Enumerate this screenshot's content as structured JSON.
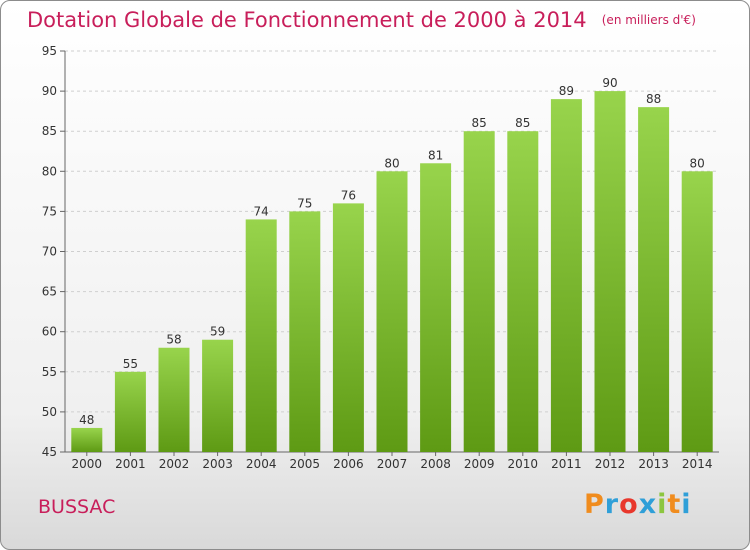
{
  "chart_data": {
    "type": "bar",
    "title": "Dotation Globale de Fonctionnement de 2000 à 2014",
    "unit_note": "(en milliers d'€)",
    "categories": [
      "2000",
      "2001",
      "2002",
      "2003",
      "2004",
      "2005",
      "2006",
      "2007",
      "2008",
      "2009",
      "2010",
      "2011",
      "2012",
      "2013",
      "2014"
    ],
    "values": [
      48,
      55,
      58,
      59,
      74,
      75,
      76,
      80,
      81,
      85,
      85,
      89,
      90,
      88,
      80
    ],
    "ylim": [
      45,
      95
    ],
    "yticks": [
      45,
      50,
      55,
      60,
      65,
      70,
      75,
      80,
      85,
      90,
      95
    ],
    "grid": true,
    "bar_color_top": "#98d44c",
    "bar_color_bottom": "#5e9a14",
    "label_color": "#333333"
  },
  "footer": {
    "commune": "BUSSAC",
    "brand": "Proxiti",
    "brand_colors": [
      "#f08c1e",
      "#2f9fd8",
      "#e8372c",
      "#2f9fd8",
      "#8cc63f",
      "#f08c1e",
      "#2f9fd8"
    ]
  }
}
